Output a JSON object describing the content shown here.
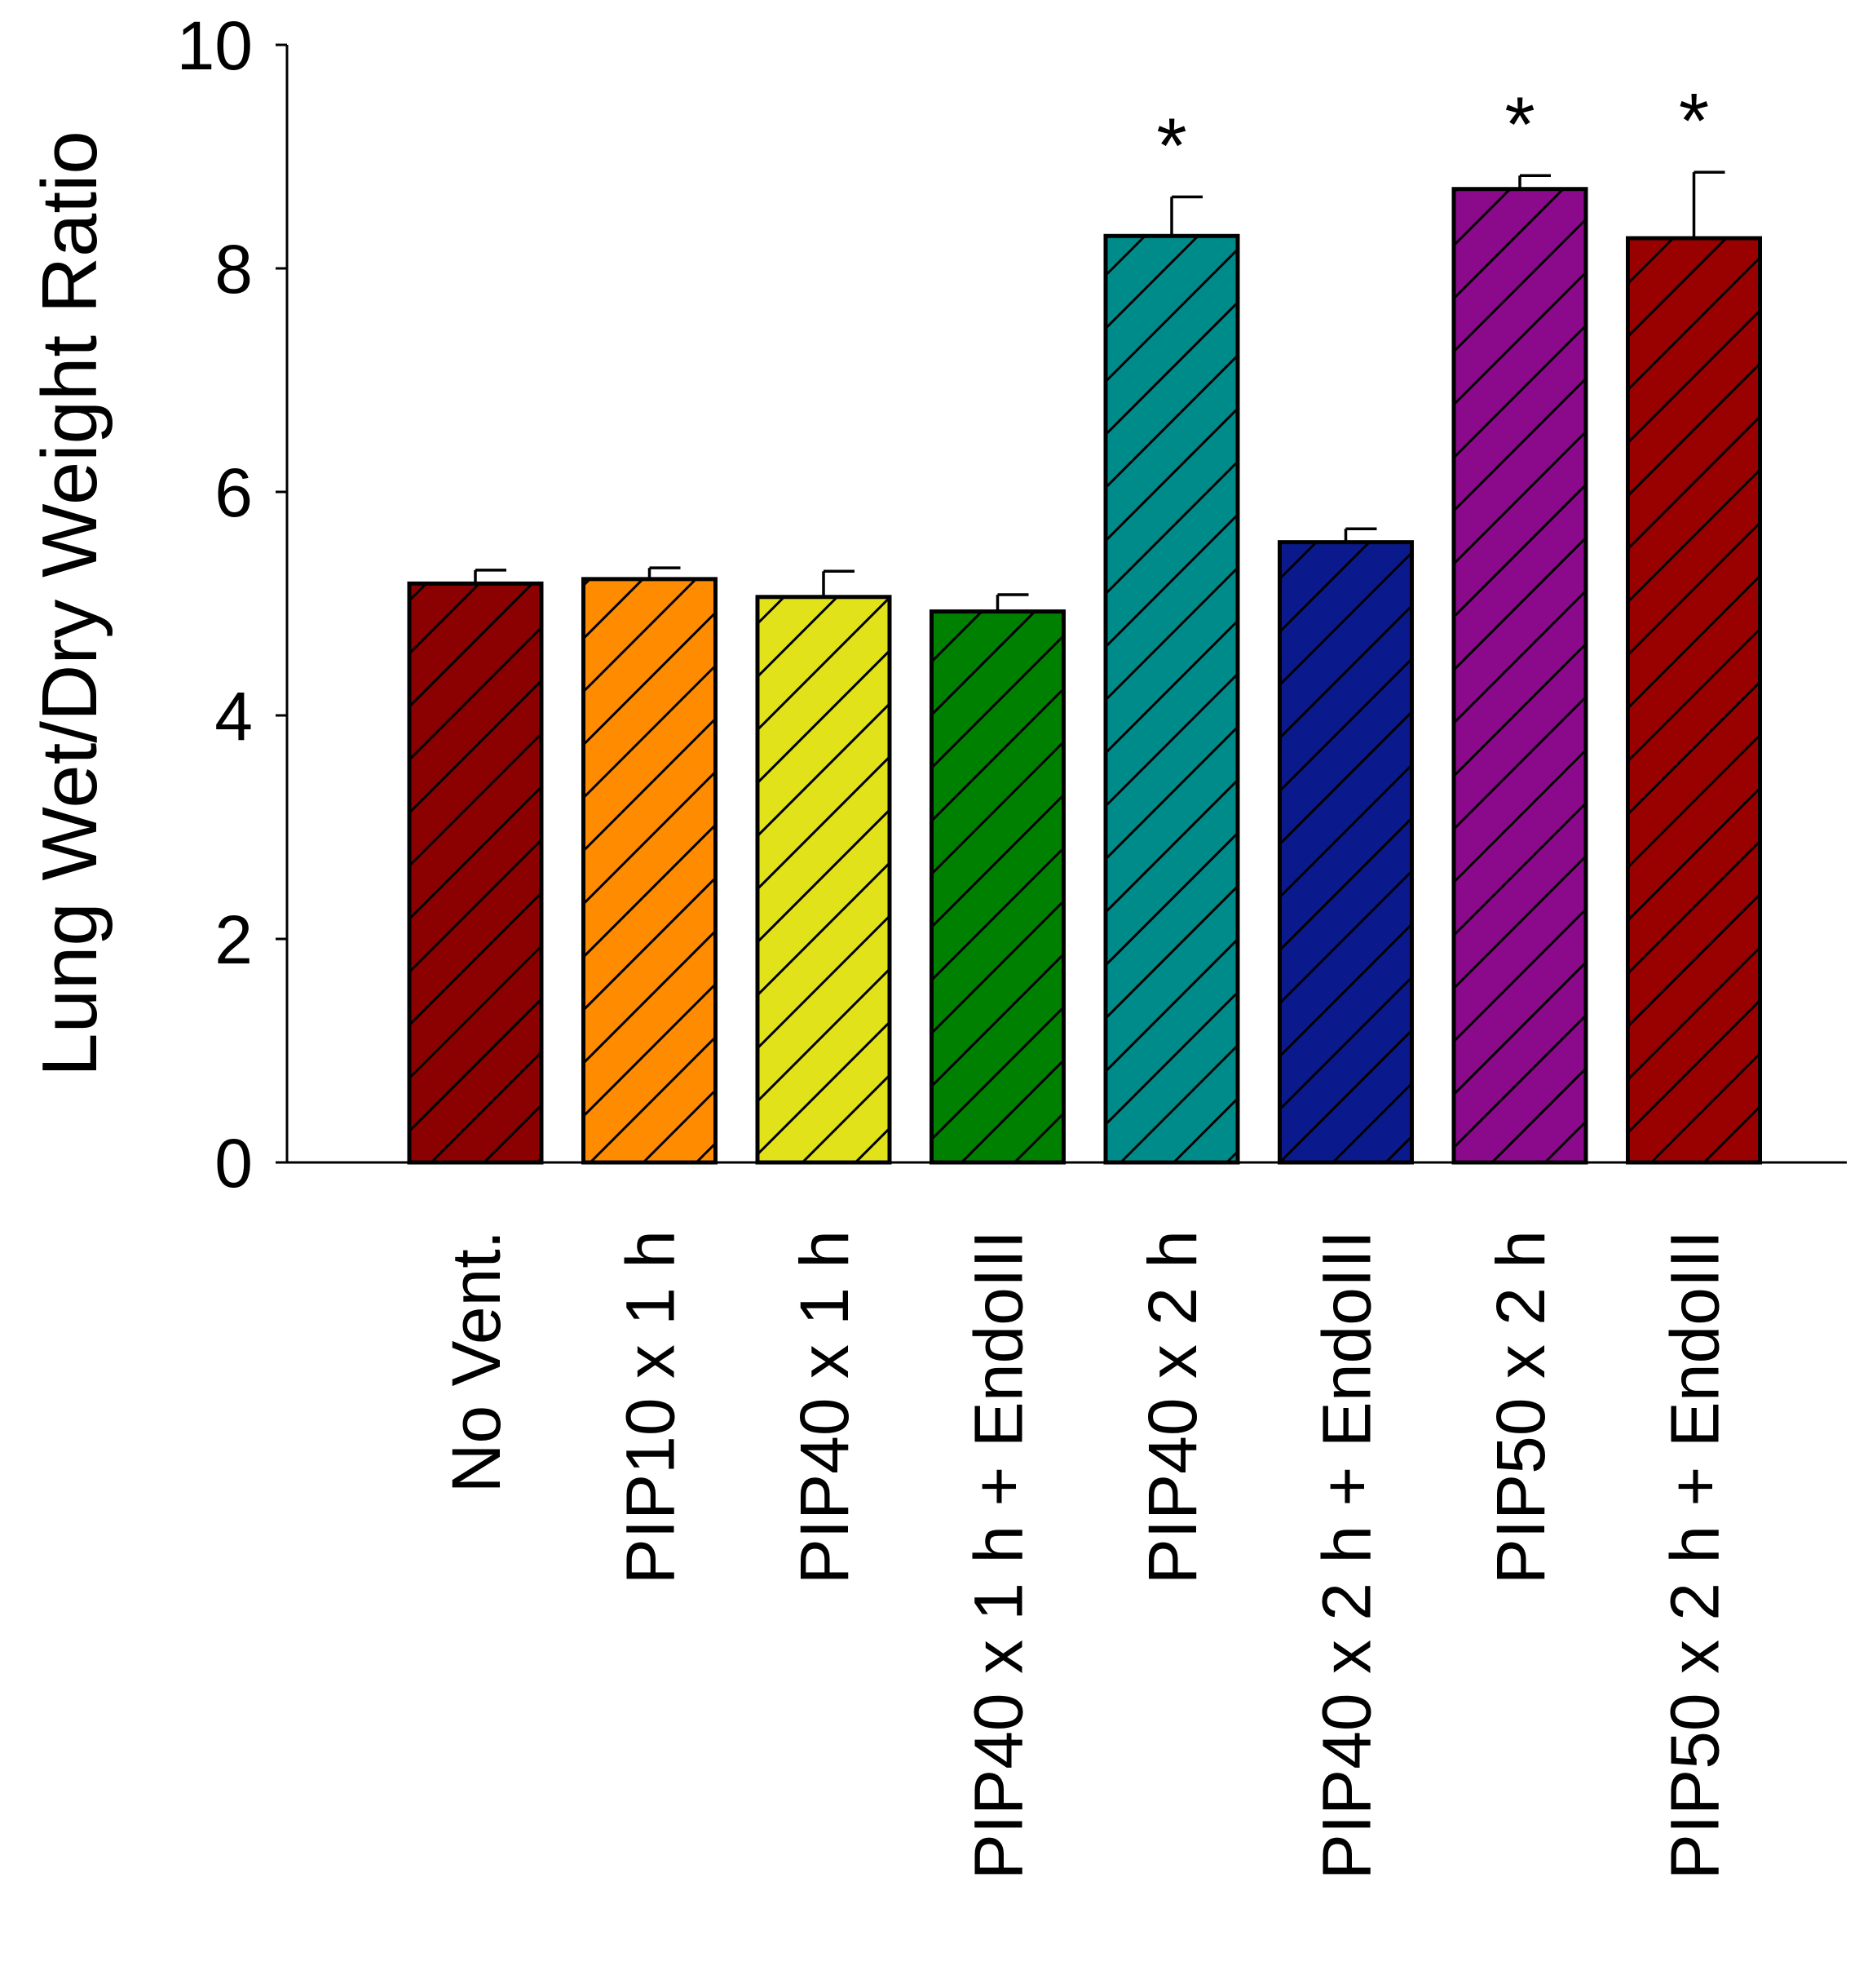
{
  "chart_data": {
    "type": "bar",
    "ylabel": "Lung Wet/Dry Weight Ratio",
    "xlabel": "",
    "ylim": [
      0,
      10
    ],
    "yticks": [
      0,
      2,
      4,
      6,
      8,
      10
    ],
    "yticks_labels": [
      "0",
      "2",
      "4",
      "6",
      "8",
      "10"
    ],
    "grid": false,
    "bar_pattern": "diagonal-hatch",
    "categories": [
      "No Vent.",
      "PIP10 x 1 h",
      "PIP40 x 1 h",
      "PIP40 x 1 h + EndoIII",
      "PIP40 x 2 h",
      "PIP40 x 2 h + EndoIII",
      "PIP50 x 2 h",
      "PIP50 x 2 h + EndoIII"
    ],
    "values": [
      5.18,
      5.22,
      5.06,
      4.93,
      8.29,
      5.55,
      8.71,
      8.27
    ],
    "errors": [
      0.12,
      0.1,
      0.23,
      0.15,
      0.35,
      0.12,
      0.12,
      0.59
    ],
    "significance": [
      "",
      "",
      "",
      "",
      "*",
      "",
      "*",
      "*"
    ],
    "colors": [
      "#8B0000",
      "#FF8C00",
      "#E2E21A",
      "#008000",
      "#008B8B",
      "#0A1A8C",
      "#8B0A8B",
      "#990000"
    ]
  }
}
